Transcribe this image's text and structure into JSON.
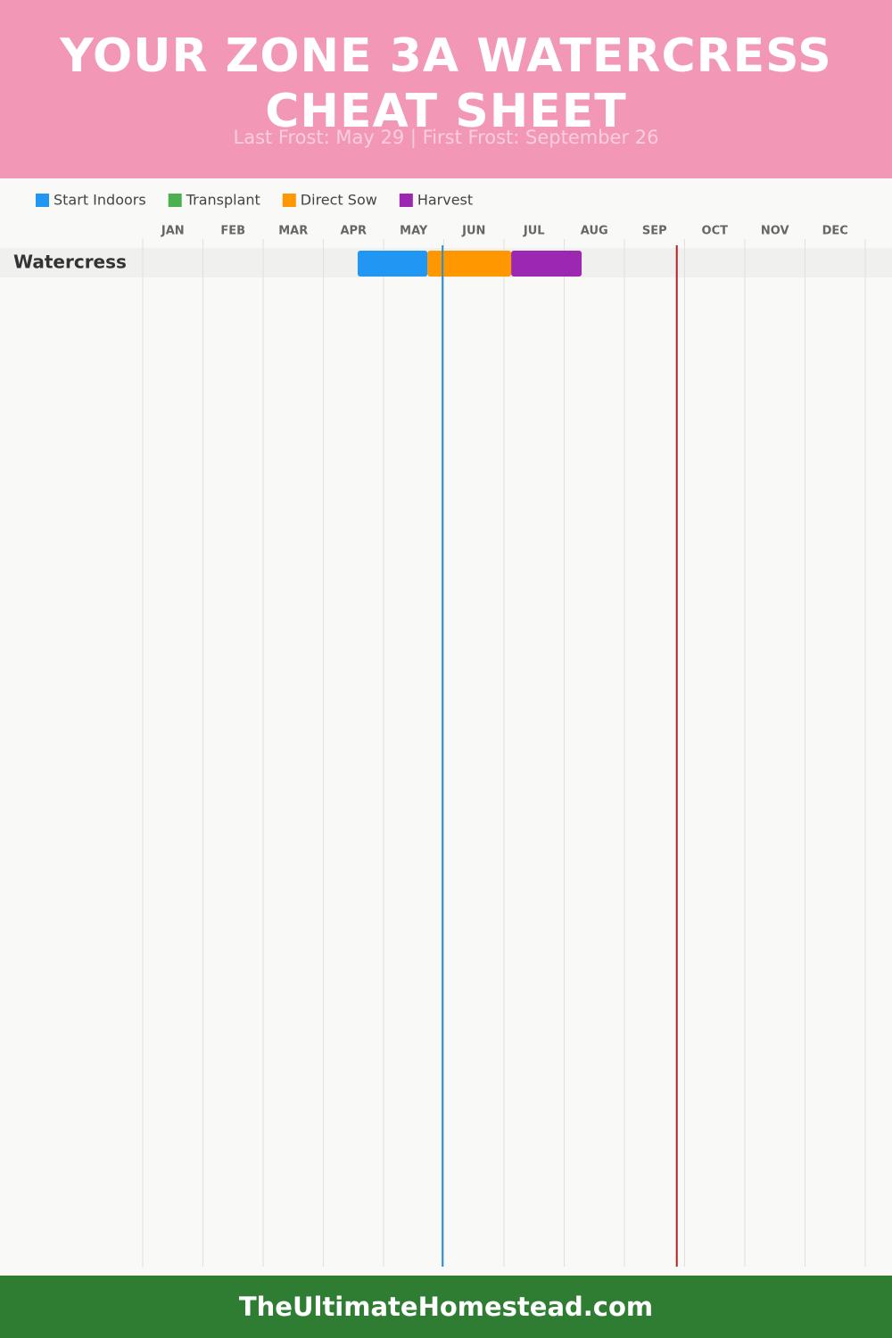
{
  "chart_data": {
    "type": "gantt",
    "title": "YOUR ZONE 3A WATERCRESS CHEAT SHEET",
    "subtitle": "Last Frost: May 29 | First Frost: September 26",
    "months": [
      "JAN",
      "FEB",
      "MAR",
      "APR",
      "MAY",
      "JUN",
      "JUL",
      "AUG",
      "SEP",
      "OCT",
      "NOV",
      "DEC"
    ],
    "xlim": [
      0,
      12
    ],
    "grid": true,
    "categories": [
      "Watercress"
    ],
    "series": [
      {
        "name": "Start Indoors",
        "color": "#2196f3",
        "values": [
          [
            3.57,
            4.73
          ]
        ]
      },
      {
        "name": "Transplant",
        "color": "#4caf50",
        "values": [
          null
        ]
      },
      {
        "name": "Direct Sow",
        "color": "#ff9800",
        "values": [
          [
            4.73,
            6.12
          ]
        ]
      },
      {
        "name": "Harvest",
        "color": "#9c27b0",
        "values": [
          [
            6.12,
            7.29
          ]
        ]
      }
    ],
    "frost_lines": [
      {
        "value": 4.98,
        "color": "#2a8fd6"
      },
      {
        "value": 8.87,
        "color": "#b22222"
      }
    ],
    "footer": "TheUltimateHomestead.com"
  }
}
